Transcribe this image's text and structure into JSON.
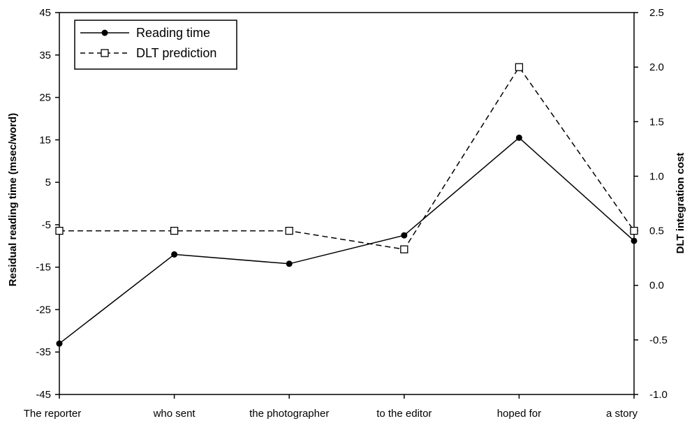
{
  "chart_data": {
    "type": "line",
    "categories": [
      "The reporter",
      "who sent",
      "the photographer",
      "to the editor",
      "hoped for",
      "a story"
    ],
    "series": [
      {
        "name": "Reading time",
        "axis": "left",
        "line_style": "solid",
        "marker": "filled-circle",
        "values": [
          -33,
          -12,
          -14.2,
          -7.5,
          15.5,
          -8.8
        ]
      },
      {
        "name": "DLT prediction",
        "axis": "right",
        "line_style": "dashed",
        "marker": "open-square",
        "values": [
          0.5,
          0.5,
          0.5,
          0.33,
          2.0,
          0.5
        ]
      }
    ],
    "ylabel": "Residual reading time (msec/word)",
    "y2label": "DLT integration cost",
    "xlabel": "",
    "ylim": [
      -45,
      45
    ],
    "y2lim": [
      -1.0,
      2.5
    ],
    "yticks": [
      "45",
      "35",
      "25",
      "15",
      "5",
      "-5",
      "-15",
      "-25",
      "-35",
      "-45"
    ],
    "y2ticks": [
      "2.5",
      "2.0",
      "1.5",
      "1.0",
      "0.5",
      "0.0",
      "-0.5",
      "-1.0"
    ],
    "grid": false,
    "legend_position": "top-left",
    "colors": {
      "line": "#000000",
      "background": "#ffffff"
    }
  }
}
